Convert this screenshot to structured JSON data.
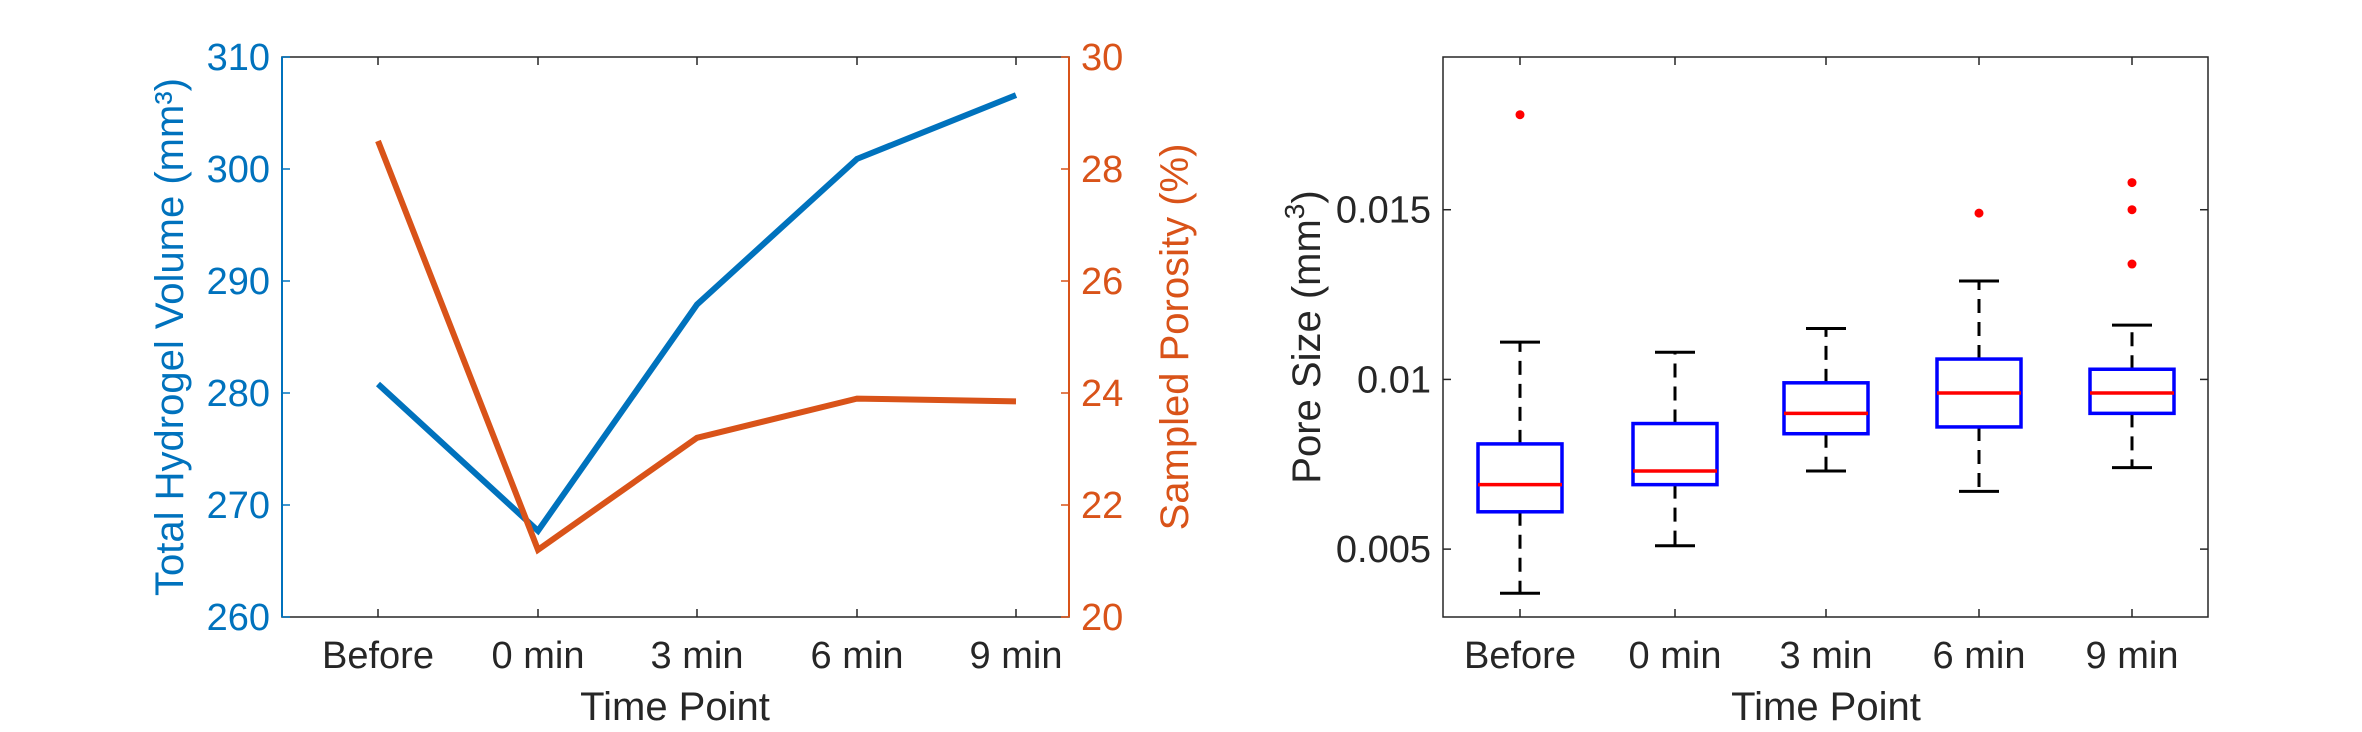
{
  "chart_data": [
    {
      "type": "line",
      "dual_axis": true,
      "categories": [
        "Before",
        "0 min",
        "3 min",
        "6 min",
        "9 min"
      ],
      "xlabel": "Time Point",
      "ylabel_left": "Total Hydrogel Volume (mm³)",
      "ylabel_right": "Sampled Porosity (%)",
      "ylim_left": [
        260,
        310
      ],
      "yticks_left": [
        "260",
        "270",
        "280",
        "290",
        "300",
        "310"
      ],
      "ylim_right": [
        20,
        30
      ],
      "yticks_right": [
        "20",
        "22",
        "24",
        "26",
        "28",
        "30"
      ],
      "grid": false,
      "colors": {
        "left": "#0072BD",
        "right": "#D95319"
      },
      "series": [
        {
          "axis": "left",
          "color": "#0072BD",
          "values": [
            280.8,
            267.7,
            287.9,
            300.9,
            306.6
          ]
        },
        {
          "axis": "right",
          "color": "#D95319",
          "values": [
            28.5,
            21.2,
            23.2,
            23.9,
            23.85
          ]
        }
      ]
    },
    {
      "type": "box",
      "categories": [
        "Before",
        "0 min",
        "3 min",
        "6 min",
        "9 min"
      ],
      "xlabel": "Time Point",
      "ylabel": "Pore Size (mm",
      "ylabel_superscript": "3",
      "ylabel_close": ")",
      "ylim": [
        0.003,
        0.0195
      ],
      "yticks": [
        "0.005",
        "0.01",
        "0.015"
      ],
      "grid": false,
      "colors": {
        "box": "#0000FF",
        "median": "#FF0000",
        "whisker": "#000000",
        "outlier": "#FF0000"
      },
      "boxes": [
        {
          "whisker_low": 0.0037,
          "q1": 0.0061,
          "median": 0.0069,
          "q3": 0.0081,
          "whisker_high": 0.0111,
          "outliers": [
            0.0178
          ]
        },
        {
          "whisker_low": 0.0051,
          "q1": 0.0069,
          "median": 0.0073,
          "q3": 0.0087,
          "whisker_high": 0.0108,
          "outliers": []
        },
        {
          "whisker_low": 0.0073,
          "q1": 0.0084,
          "median": 0.009,
          "q3": 0.0099,
          "whisker_high": 0.0115,
          "outliers": []
        },
        {
          "whisker_low": 0.0067,
          "q1": 0.0086,
          "median": 0.0096,
          "q3": 0.0106,
          "whisker_high": 0.0129,
          "outliers": [
            0.0149
          ]
        },
        {
          "whisker_low": 0.0074,
          "q1": 0.009,
          "median": 0.0096,
          "q3": 0.0103,
          "whisker_high": 0.0116,
          "outliers": [
            0.0134,
            0.015,
            0.0158
          ]
        }
      ]
    }
  ]
}
